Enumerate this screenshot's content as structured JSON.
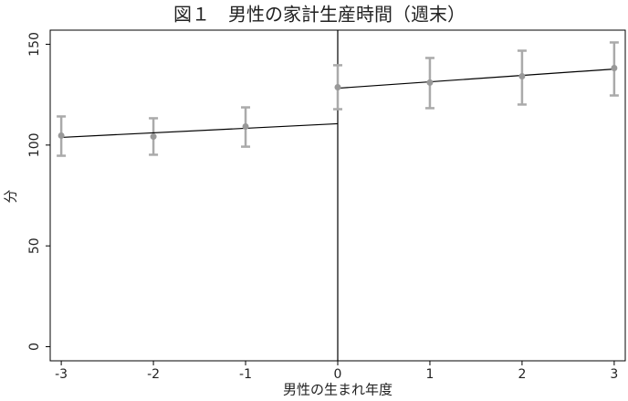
{
  "chart_data": {
    "type": "rdd",
    "title": "図１　男性の家計生産時間（週末）",
    "xlabel": "男性の生まれ年度",
    "ylabel": "分",
    "x": [
      -3,
      -2,
      -1,
      0,
      1,
      2,
      3
    ],
    "values": [
      104.7,
      104.2,
      109.2,
      128.7,
      131,
      134.1,
      138.2
    ],
    "ci_lower": [
      94.7,
      95.2,
      99.2,
      117.8,
      118.3,
      120.1,
      124.6
    ],
    "ci_upper": [
      114.2,
      113.3,
      118.7,
      139.6,
      143.2,
      146.8,
      150.9
    ],
    "point_color": "#999999",
    "errorbar_color": "#aaaaaa",
    "fit_color": "#000000",
    "fit_lines": [
      {
        "x": [
          -3,
          0
        ],
        "values": [
          103.8,
          110.6
        ]
      },
      {
        "x": [
          0,
          3
        ],
        "values": [
          128.2,
          137.7
        ]
      }
    ],
    "cutoff": 0,
    "xlim": [
      -3.12,
      3.12
    ],
    "ylim": [
      -7,
      157
    ],
    "xticks": [
      -3,
      -2,
      -1,
      0,
      1,
      2,
      3
    ],
    "yticks": [
      0,
      50,
      100,
      150
    ]
  }
}
